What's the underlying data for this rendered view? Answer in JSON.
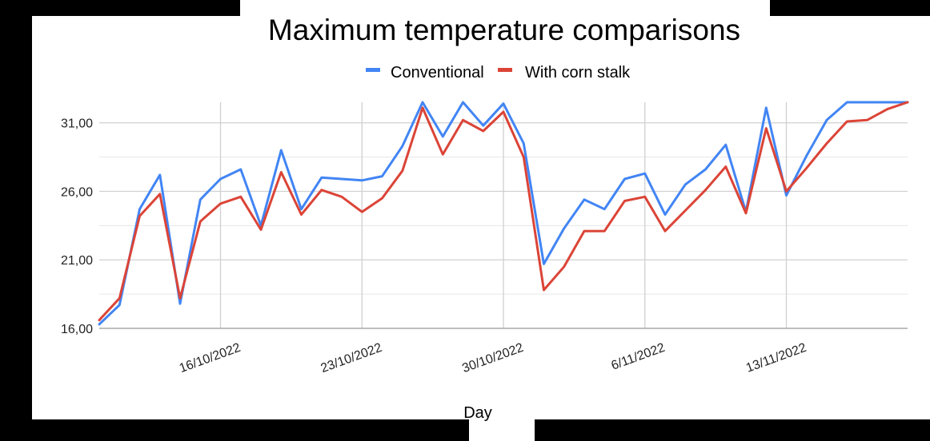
{
  "chart_data": {
    "type": "line",
    "title": "Maximum temperature comparisons",
    "xlabel": "Day",
    "ylabel": "",
    "ylim": [
      16,
      32.5
    ],
    "y_ticks": [
      "16,00",
      "21,00",
      "26,00",
      "31,00"
    ],
    "y_tick_values": [
      16,
      21,
      26,
      31
    ],
    "x_tick_labels": [
      "16/10/2022",
      "23/10/2022",
      "30/10/2022",
      "6/11/2022",
      "13/11/2022"
    ],
    "x_tick_days": [
      "2022-10-16",
      "2022-10-23",
      "2022-10-30",
      "2022-11-06",
      "2022-11-13"
    ],
    "x": [
      "2022-10-10",
      "2022-10-11",
      "2022-10-12",
      "2022-10-13",
      "2022-10-14",
      "2022-10-15",
      "2022-10-16",
      "2022-10-17",
      "2022-10-18",
      "2022-10-19",
      "2022-10-20",
      "2022-10-21",
      "2022-10-22",
      "2022-10-23",
      "2022-10-24",
      "2022-10-25",
      "2022-10-26",
      "2022-10-27",
      "2022-10-28",
      "2022-10-29",
      "2022-10-30",
      "2022-10-31",
      "2022-11-01",
      "2022-11-02",
      "2022-11-03",
      "2022-11-04",
      "2022-11-05",
      "2022-11-06",
      "2022-11-07",
      "2022-11-08",
      "2022-11-09",
      "2022-11-10",
      "2022-11-11",
      "2022-11-12",
      "2022-11-13",
      "2022-11-14",
      "2022-11-15",
      "2022-11-16",
      "2022-11-17",
      "2022-11-18",
      "2022-11-19"
    ],
    "grid": true,
    "legend_position": "top",
    "series": [
      {
        "name": "Conventional",
        "color": "#4285F4",
        "values": [
          16.3,
          17.7,
          24.7,
          27.2,
          17.8,
          25.4,
          26.9,
          27.6,
          23.5,
          29.0,
          24.7,
          27.0,
          26.9,
          26.8,
          27.1,
          29.3,
          33.3,
          30.0,
          32.5,
          30.8,
          32.4,
          29.5,
          20.7,
          23.3,
          25.4,
          24.7,
          26.9,
          27.3,
          24.3,
          26.5,
          27.6,
          29.4,
          24.5,
          32.1,
          25.7,
          28.6,
          31.2,
          32.7,
          32.6,
          33.4,
          35.0
        ]
      },
      {
        "name": "With corn stalk",
        "color": "#DB4437",
        "values": [
          16.6,
          18.2,
          24.2,
          25.8,
          18.2,
          23.8,
          25.1,
          25.6,
          23.2,
          27.4,
          24.3,
          26.1,
          25.6,
          24.5,
          25.5,
          27.5,
          32.1,
          28.7,
          31.2,
          30.4,
          31.8,
          28.5,
          18.8,
          20.5,
          23.1,
          23.1,
          25.3,
          25.6,
          23.1,
          24.6,
          26.1,
          27.8,
          24.4,
          30.6,
          26.0,
          27.7,
          29.5,
          31.1,
          31.2,
          32.0,
          33.0
        ]
      }
    ]
  }
}
